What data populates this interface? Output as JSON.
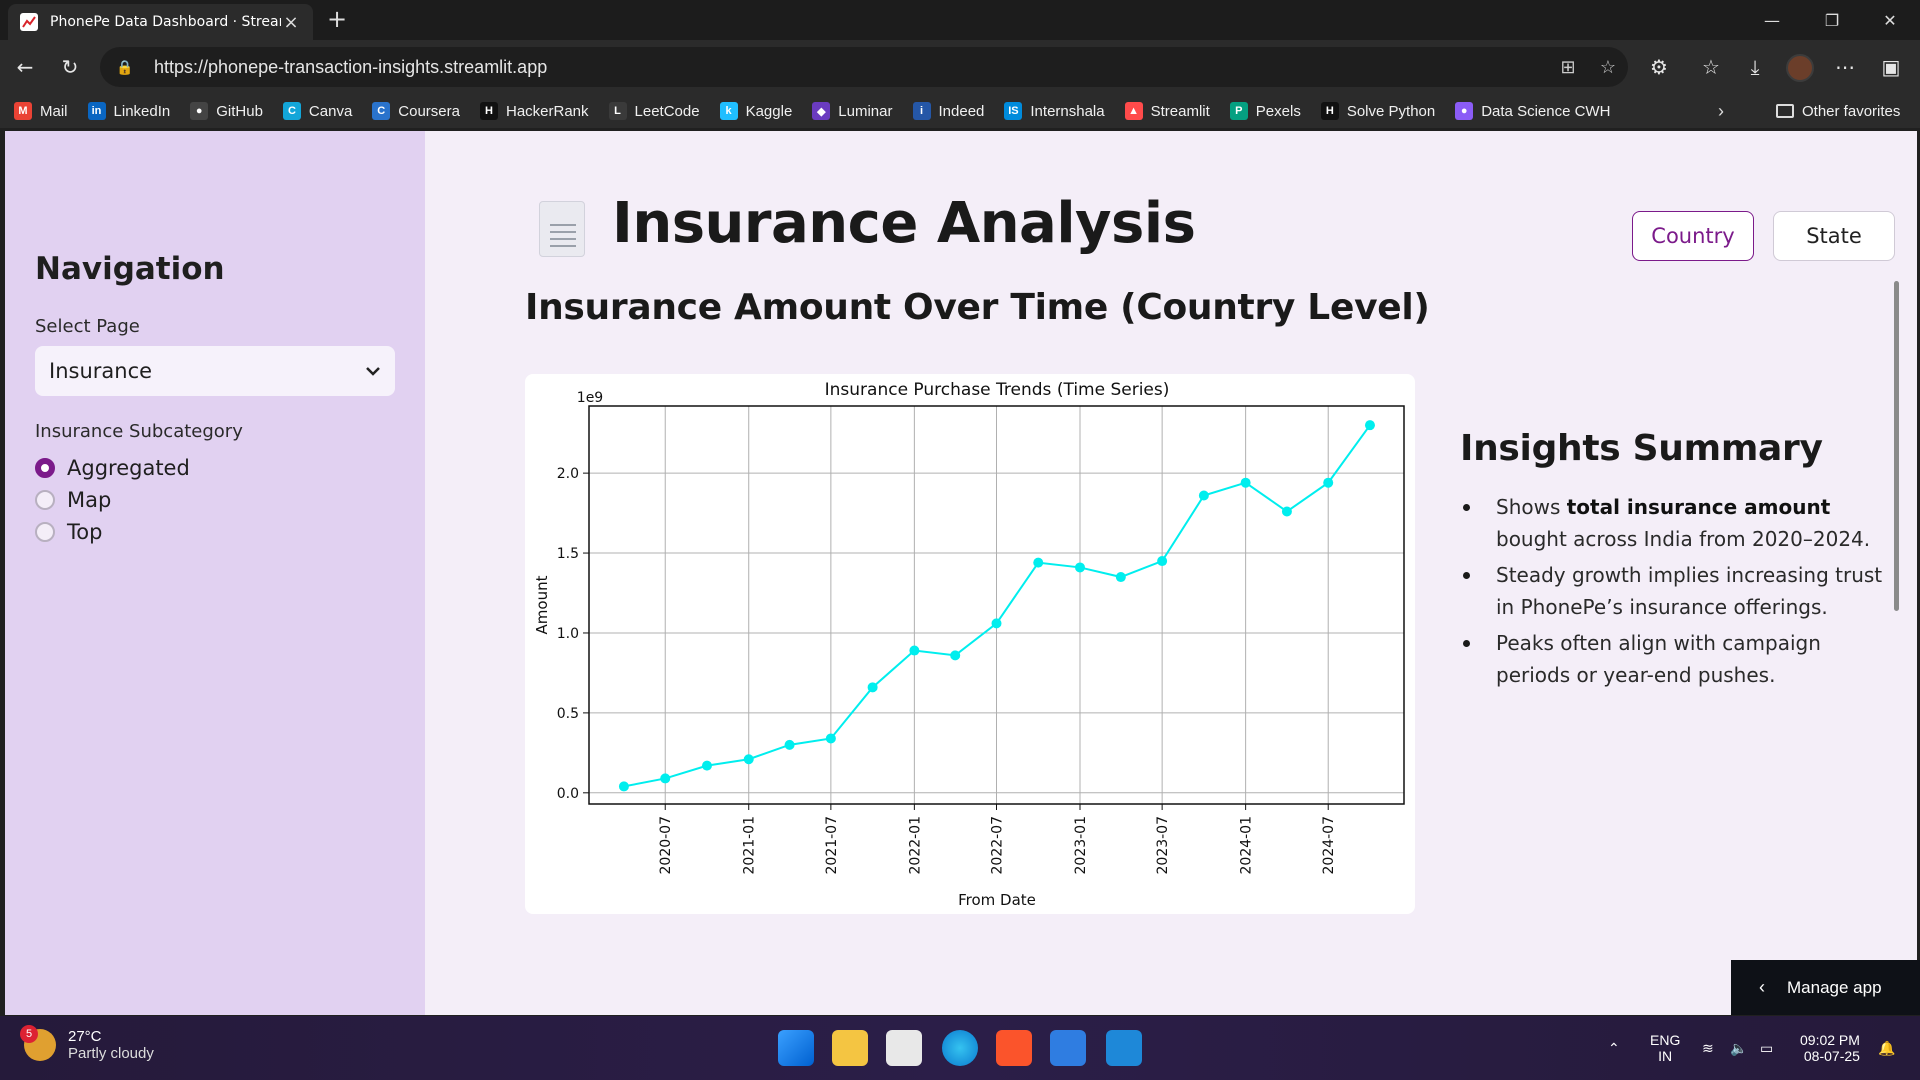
{
  "browser": {
    "tab_title": "PhonePe Data Dashboard · Stream",
    "url": "https://phonepe-transaction-insights.streamlit.app",
    "bookmarks": [
      {
        "label": "Mail",
        "icon": "gmail-icon",
        "color": "#ea4335",
        "glyph": "M"
      },
      {
        "label": "LinkedIn",
        "icon": "linkedin-icon",
        "color": "#0a66c2",
        "glyph": "in"
      },
      {
        "label": "GitHub",
        "icon": "github-icon",
        "color": "#444444",
        "glyph": "●"
      },
      {
        "label": "Canva",
        "icon": "canva-icon",
        "color": "#13a6d9",
        "glyph": "C"
      },
      {
        "label": "Coursera",
        "icon": "coursera-icon",
        "color": "#2a73cc",
        "glyph": "C"
      },
      {
        "label": "HackerRank",
        "icon": "hackerrank-icon",
        "color": "#111111",
        "glyph": "H"
      },
      {
        "label": "LeetCode",
        "icon": "leetcode-icon",
        "color": "#3a3a3a",
        "glyph": "L"
      },
      {
        "label": "Kaggle",
        "icon": "kaggle-icon",
        "color": "#20beff",
        "glyph": "k"
      },
      {
        "label": "Luminar",
        "icon": "luminar-icon",
        "color": "#6a3bc0",
        "glyph": "◆"
      },
      {
        "label": "Indeed",
        "icon": "indeed-icon",
        "color": "#2557a7",
        "glyph": "i"
      },
      {
        "label": "Internshala",
        "icon": "internshala-icon",
        "color": "#008bdc",
        "glyph": "IS"
      },
      {
        "label": "Streamlit",
        "icon": "streamlit-icon",
        "color": "#ff4b4b",
        "glyph": "▲"
      },
      {
        "label": "Pexels",
        "icon": "pexels-icon",
        "color": "#05a081",
        "glyph": "P"
      },
      {
        "label": "Solve Python",
        "icon": "hackerrank-icon",
        "color": "#111111",
        "glyph": "H"
      },
      {
        "label": "Data Science CWH",
        "icon": "cwh-icon",
        "color": "#8b5cf6",
        "glyph": "●"
      }
    ],
    "other_favorites": "Other favorites"
  },
  "sidebar": {
    "title": "Navigation",
    "select_label": "Select Page",
    "select_value": "Insurance",
    "radio_label": "Insurance Subcategory",
    "radio_options": [
      "Aggregated",
      "Map",
      "Top"
    ],
    "radio_selected": 0
  },
  "main": {
    "title": "Insurance Analysis",
    "buttons": {
      "country": "Country",
      "state": "State"
    },
    "subtitle": "Insurance Amount Over Time (Country Level)",
    "insights_title": "Insights Summary",
    "insights": [
      {
        "pre": "Shows ",
        "bold": "total insurance amount",
        "post": " bought across India from 2020–2024."
      },
      {
        "pre": "Steady growth implies increasing trust in PhonePe’s insurance offerings.",
        "bold": "",
        "post": ""
      },
      {
        "pre": "Peaks often align with campaign periods or year-end pushes.",
        "bold": "",
        "post": ""
      }
    ],
    "manage_app": "Manage app"
  },
  "chart_data": {
    "type": "line",
    "title": "Insurance Purchase Trends (Time Series)",
    "xlabel": "From Date",
    "ylabel": "Amount",
    "y_multiplier_label": "1e9",
    "x_tick_labels": [
      "2020-07",
      "2021-01",
      "2021-07",
      "2022-01",
      "2022-07",
      "2023-01",
      "2023-07",
      "2024-01",
      "2024-07"
    ],
    "y_tick_labels": [
      "0.0",
      "0.5",
      "1.0",
      "1.5",
      "2.0"
    ],
    "ylim": [
      -0.07,
      2.42
    ],
    "xlim": [
      "2020-01-15",
      "2024-12-15"
    ],
    "grid": true,
    "color": "#00eeee",
    "x": [
      "2020-04-01",
      "2020-07-01",
      "2020-10-01",
      "2021-01-01",
      "2021-04-01",
      "2021-07-01",
      "2021-10-01",
      "2022-01-01",
      "2022-04-01",
      "2022-07-01",
      "2022-10-01",
      "2023-01-01",
      "2023-04-01",
      "2023-07-01",
      "2023-10-01",
      "2024-01-01",
      "2024-04-01",
      "2024-07-01",
      "2024-10-01"
    ],
    "values": [
      0.04,
      0.09,
      0.17,
      0.21,
      0.3,
      0.34,
      0.66,
      0.89,
      0.86,
      1.06,
      1.44,
      1.41,
      1.35,
      1.45,
      1.86,
      1.94,
      1.76,
      1.94,
      2.3
    ]
  },
  "taskbar": {
    "weather_temp": "27°C",
    "weather_desc": "Partly cloudy",
    "weather_badge": "5",
    "lang_1": "ENG",
    "lang_2": "IN",
    "time": "09:02 PM",
    "date": "08-07-25"
  }
}
